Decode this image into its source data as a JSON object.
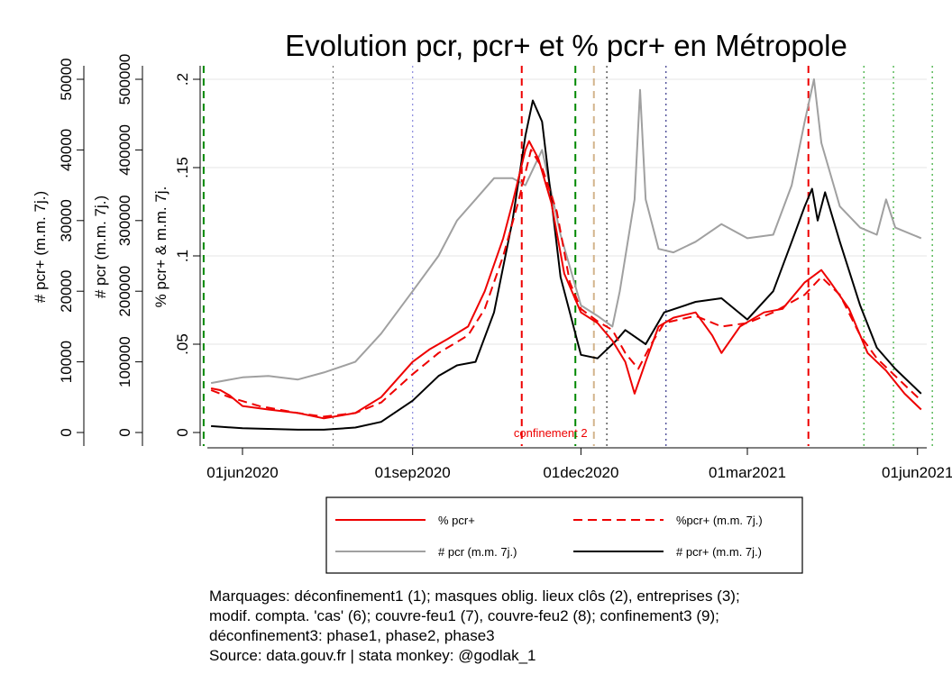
{
  "chart_data": {
    "type": "line",
    "title": "Evolution pcr, pcr+ et % pcr+ en Métropole",
    "axes": {
      "y_pct": {
        "label": "% pcr+ & m.m. 7j.",
        "range": [
          0,
          0.2
        ],
        "ticks": [
          0,
          0.05,
          0.1,
          0.15,
          0.2
        ],
        "tick_labels": [
          "0",
          ".05",
          ".1",
          ".15",
          ".2"
        ]
      },
      "y_pcr": {
        "label": "# pcr (m.m. 7j.)",
        "range": [
          0,
          500000
        ],
        "ticks": [
          0,
          100000,
          200000,
          300000,
          400000,
          500000
        ],
        "tick_labels": [
          "0",
          "100000",
          "200000",
          "300000",
          "400000",
          "500000"
        ]
      },
      "y_pcrpos": {
        "label": "# pcr+ (m.m. 7j.)",
        "range": [
          0,
          50000
        ],
        "ticks": [
          0,
          10000,
          20000,
          30000,
          40000,
          50000
        ],
        "tick_labels": [
          "0",
          "10000",
          "20000",
          "30000",
          "40000",
          "50000"
        ]
      },
      "x": {
        "range": [
          "2020-05-13",
          "2021-06-06"
        ],
        "ticks": [
          "2020-06-01",
          "2020-09-01",
          "2020-12-01",
          "2021-03-01",
          "2021-06-01"
        ],
        "tick_labels": [
          "01jun2020",
          "01sep2020",
          "01dec2020",
          "01mar2021",
          "01jun2021"
        ]
      }
    },
    "grid": true,
    "legend_position": "bottom",
    "series": [
      {
        "name": "% pcr+",
        "axis": "y_pct",
        "color": "#ee0000",
        "dash": "solid",
        "points": [
          [
            "2020-05-15",
            0.025
          ],
          [
            "2020-05-20",
            0.024
          ],
          [
            "2020-05-25",
            0.021
          ],
          [
            "2020-06-01",
            0.015
          ],
          [
            "2020-06-15",
            0.013
          ],
          [
            "2020-07-01",
            0.011
          ],
          [
            "2020-07-15",
            0.008
          ],
          [
            "2020-08-01",
            0.011
          ],
          [
            "2020-08-15",
            0.02
          ],
          [
            "2020-09-01",
            0.04
          ],
          [
            "2020-09-10",
            0.047
          ],
          [
            "2020-09-20",
            0.053
          ],
          [
            "2020-10-01",
            0.06
          ],
          [
            "2020-10-10",
            0.08
          ],
          [
            "2020-10-20",
            0.11
          ],
          [
            "2020-10-25",
            0.13
          ],
          [
            "2020-11-01",
            0.16
          ],
          [
            "2020-11-03",
            0.165
          ],
          [
            "2020-11-08",
            0.155
          ],
          [
            "2020-11-15",
            0.13
          ],
          [
            "2020-11-22",
            0.09
          ],
          [
            "2020-12-01",
            0.068
          ],
          [
            "2020-12-10",
            0.062
          ],
          [
            "2020-12-18",
            0.052
          ],
          [
            "2020-12-25",
            0.04
          ],
          [
            "2020-12-30",
            0.022
          ],
          [
            "2021-01-05",
            0.04
          ],
          [
            "2021-01-12",
            0.06
          ],
          [
            "2021-01-20",
            0.065
          ],
          [
            "2021-02-01",
            0.068
          ],
          [
            "2021-02-10",
            0.055
          ],
          [
            "2021-02-15",
            0.045
          ],
          [
            "2021-02-25",
            0.06
          ],
          [
            "2021-03-10",
            0.068
          ],
          [
            "2021-03-20",
            0.07
          ],
          [
            "2021-04-01",
            0.085
          ],
          [
            "2021-04-10",
            0.092
          ],
          [
            "2021-04-15",
            0.085
          ],
          [
            "2021-04-25",
            0.07
          ],
          [
            "2021-05-05",
            0.045
          ],
          [
            "2021-05-15",
            0.035
          ],
          [
            "2021-05-25",
            0.022
          ],
          [
            "2021-06-01",
            0.015
          ],
          [
            "2021-06-03",
            0.013
          ]
        ]
      },
      {
        "name": "%pcr+ (m.m. 7j.)",
        "axis": "y_pct",
        "color": "#ee0000",
        "dash": "dashed",
        "points": [
          [
            "2020-05-15",
            0.024
          ],
          [
            "2020-05-25",
            0.02
          ],
          [
            "2020-06-10",
            0.015
          ],
          [
            "2020-07-01",
            0.011
          ],
          [
            "2020-07-15",
            0.009
          ],
          [
            "2020-08-01",
            0.011
          ],
          [
            "2020-08-15",
            0.017
          ],
          [
            "2020-09-01",
            0.033
          ],
          [
            "2020-09-15",
            0.045
          ],
          [
            "2020-10-01",
            0.055
          ],
          [
            "2020-10-10",
            0.07
          ],
          [
            "2020-10-20",
            0.1
          ],
          [
            "2020-10-28",
            0.13
          ],
          [
            "2020-11-04",
            0.16
          ],
          [
            "2020-11-10",
            0.15
          ],
          [
            "2020-11-18",
            0.125
          ],
          [
            "2020-11-25",
            0.085
          ],
          [
            "2020-12-01",
            0.07
          ],
          [
            "2020-12-10",
            0.063
          ],
          [
            "2020-12-18",
            0.058
          ],
          [
            "2020-12-25",
            0.045
          ],
          [
            "2021-01-01",
            0.036
          ],
          [
            "2021-01-08",
            0.05
          ],
          [
            "2021-01-15",
            0.062
          ],
          [
            "2021-02-01",
            0.066
          ],
          [
            "2021-02-15",
            0.06
          ],
          [
            "2021-03-01",
            0.062
          ],
          [
            "2021-03-15",
            0.068
          ],
          [
            "2021-04-01",
            0.078
          ],
          [
            "2021-04-10",
            0.088
          ],
          [
            "2021-04-20",
            0.078
          ],
          [
            "2021-05-01",
            0.055
          ],
          [
            "2021-05-10",
            0.042
          ],
          [
            "2021-05-20",
            0.032
          ],
          [
            "2021-06-03",
            0.018
          ]
        ]
      },
      {
        "name": "# pcr (m.m. 7j.)",
        "axis": "y_pcr",
        "color": "#a0a0a0",
        "dash": "solid",
        "points": [
          [
            "2020-05-15",
            70000
          ],
          [
            "2020-06-01",
            78000
          ],
          [
            "2020-06-15",
            80000
          ],
          [
            "2020-07-01",
            75000
          ],
          [
            "2020-07-15",
            85000
          ],
          [
            "2020-08-01",
            100000
          ],
          [
            "2020-08-15",
            140000
          ],
          [
            "2020-09-01",
            200000
          ],
          [
            "2020-09-15",
            250000
          ],
          [
            "2020-09-25",
            300000
          ],
          [
            "2020-10-05",
            330000
          ],
          [
            "2020-10-15",
            360000
          ],
          [
            "2020-10-25",
            360000
          ],
          [
            "2020-11-01",
            350000
          ],
          [
            "2020-11-10",
            400000
          ],
          [
            "2020-11-20",
            280000
          ],
          [
            "2020-12-01",
            180000
          ],
          [
            "2020-12-10",
            165000
          ],
          [
            "2020-12-18",
            150000
          ],
          [
            "2020-12-22",
            200000
          ],
          [
            "2020-12-30",
            330000
          ],
          [
            "2021-01-02",
            485000
          ],
          [
            "2021-01-05",
            330000
          ],
          [
            "2021-01-12",
            260000
          ],
          [
            "2021-01-20",
            255000
          ],
          [
            "2021-02-01",
            270000
          ],
          [
            "2021-02-15",
            295000
          ],
          [
            "2021-03-01",
            275000
          ],
          [
            "2021-03-15",
            280000
          ],
          [
            "2021-03-25",
            350000
          ],
          [
            "2021-04-01",
            440000
          ],
          [
            "2021-04-06",
            500000
          ],
          [
            "2021-04-10",
            410000
          ],
          [
            "2021-04-20",
            320000
          ],
          [
            "2021-05-01",
            290000
          ],
          [
            "2021-05-10",
            280000
          ],
          [
            "2021-05-15",
            330000
          ],
          [
            "2021-05-20",
            290000
          ],
          [
            "2021-06-03",
            275000
          ]
        ]
      },
      {
        "name": "# pcr+ (m.m. 7j.)",
        "axis": "y_pcrpos",
        "color": "#000000",
        "dash": "solid",
        "points": [
          [
            "2020-05-15",
            900
          ],
          [
            "2020-06-01",
            600
          ],
          [
            "2020-07-01",
            400
          ],
          [
            "2020-07-15",
            400
          ],
          [
            "2020-08-01",
            700
          ],
          [
            "2020-08-15",
            1500
          ],
          [
            "2020-09-01",
            4500
          ],
          [
            "2020-09-15",
            8000
          ],
          [
            "2020-09-25",
            9500
          ],
          [
            "2020-10-05",
            10000
          ],
          [
            "2020-10-15",
            17000
          ],
          [
            "2020-10-25",
            30000
          ],
          [
            "2020-11-01",
            42000
          ],
          [
            "2020-11-05",
            47000
          ],
          [
            "2020-11-10",
            44000
          ],
          [
            "2020-11-20",
            22000
          ],
          [
            "2020-12-01",
            11000
          ],
          [
            "2020-12-10",
            10500
          ],
          [
            "2020-12-20",
            13000
          ],
          [
            "2020-12-25",
            14500
          ],
          [
            "2021-01-05",
            12500
          ],
          [
            "2021-01-15",
            17000
          ],
          [
            "2021-02-01",
            18500
          ],
          [
            "2021-02-15",
            19000
          ],
          [
            "2021-03-01",
            16000
          ],
          [
            "2021-03-15",
            20000
          ],
          [
            "2021-03-25",
            27000
          ],
          [
            "2021-04-01",
            32000
          ],
          [
            "2021-04-05",
            34500
          ],
          [
            "2021-04-08",
            30000
          ],
          [
            "2021-04-12",
            34000
          ],
          [
            "2021-04-20",
            27000
          ],
          [
            "2021-05-01",
            18000
          ],
          [
            "2021-05-10",
            12000
          ],
          [
            "2021-05-20",
            9000
          ],
          [
            "2021-06-03",
            5500
          ]
        ]
      }
    ],
    "annotations": [
      {
        "date": "2020-05-11",
        "color": "#008800",
        "style": "dashed",
        "label": ""
      },
      {
        "date": "2020-07-20",
        "color": "#777777",
        "style": "dotted",
        "label": ""
      },
      {
        "date": "2020-09-01",
        "color": "#8888dd",
        "style": "dotted",
        "label": ""
      },
      {
        "date": "2020-10-30",
        "color": "#ee0000",
        "style": "dashed",
        "label": "confinement 2"
      },
      {
        "date": "2020-11-28",
        "color": "#008800",
        "style": "dashed",
        "label": ""
      },
      {
        "date": "2020-12-08",
        "color": "#d2b48c",
        "style": "dashed",
        "label": ""
      },
      {
        "date": "2020-12-15",
        "color": "#333333",
        "style": "dotted",
        "label": ""
      },
      {
        "date": "2021-01-16",
        "color": "#333388",
        "style": "dotted",
        "label": ""
      },
      {
        "date": "2021-04-03",
        "color": "#ee0000",
        "style": "dashed",
        "label": ""
      },
      {
        "date": "2021-05-03",
        "color": "#33aa33",
        "style": "dotted",
        "label": ""
      },
      {
        "date": "2021-05-19",
        "color": "#33aa33",
        "style": "dotted",
        "label": ""
      },
      {
        "date": "2021-06-09",
        "color": "#33aa33",
        "style": "dotted",
        "label": ""
      }
    ]
  },
  "notes": [
    "Marquages: déconfinement1 (1); masques oblig. lieux clôs (2), entreprises (3);",
    "modif. compta. 'cas' (6); couvre-feu1 (7), couvre-feu2 (8); confinement3 (9);",
    "déconfinement3: phase1, phase2, phase3",
    "Source: data.gouv.fr | stata monkey: @godlak_1"
  ]
}
